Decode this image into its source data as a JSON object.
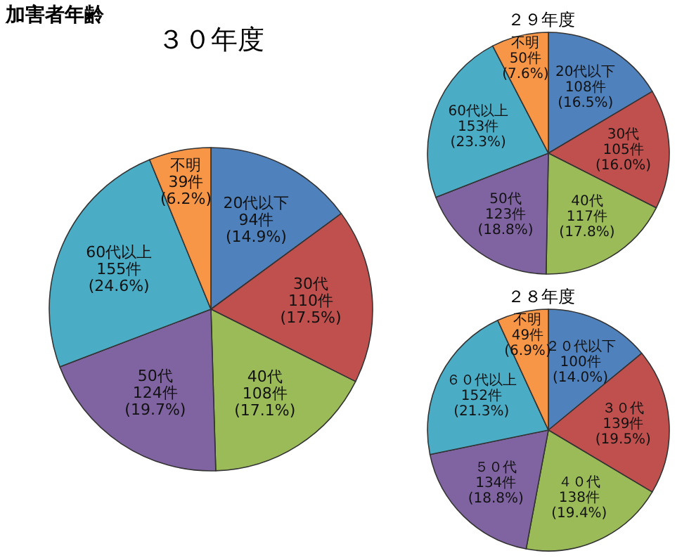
{
  "chart_data": [
    {
      "type": "pie",
      "title": "３０年度",
      "annotations": [
        "加害者年齢"
      ],
      "categories": [
        "20代以下",
        "30代",
        "40代",
        "50代",
        "60代以上",
        "不明"
      ],
      "values": [
        94,
        110,
        108,
        124,
        155,
        39
      ],
      "value_labels": [
        "94件\n(14.9%)",
        "110件\n(17.5%)",
        "108件\n(17.1%)",
        "124件\n(19.7%)",
        "155件\n(24.6%)",
        "39件\n(6.2%)"
      ],
      "colors": [
        "#4f81bd",
        "#c0504d",
        "#9bbb59",
        "#8064a2",
        "#4bacc6",
        "#f79646"
      ],
      "legend": false
    },
    {
      "type": "pie",
      "title": "２９年度",
      "categories": [
        "20代以下",
        "30代",
        "40代",
        "50代",
        "60代以上",
        "不明"
      ],
      "values": [
        108,
        105,
        117,
        123,
        153,
        50
      ],
      "value_labels": [
        "108件\n(16.5%)",
        "105件\n(16.0%)",
        "117件\n(17.8%)",
        "123件\n(18.8%)",
        "153件\n(23.3%)",
        "50件\n(7.6%)"
      ],
      "colors": [
        "#4f81bd",
        "#c0504d",
        "#9bbb59",
        "#8064a2",
        "#4bacc6",
        "#f79646"
      ],
      "legend": false
    },
    {
      "type": "pie",
      "title": "２８年度",
      "categories": [
        "２０代以下",
        "３０代",
        "４０代",
        "５０代",
        "６０代以上",
        "不明"
      ],
      "values": [
        100,
        139,
        138,
        134,
        152,
        49
      ],
      "value_labels": [
        "100件\n(14.0%)",
        "139件\n(19.5%)",
        "138件\n(19.4%)",
        "134件\n(18.8%)",
        "152件\n(21.3%)",
        "49件\n(6.9%)"
      ],
      "colors": [
        "#4f81bd",
        "#c0504d",
        "#9bbb59",
        "#8064a2",
        "#4bacc6",
        "#f79646"
      ],
      "legend": false
    }
  ]
}
